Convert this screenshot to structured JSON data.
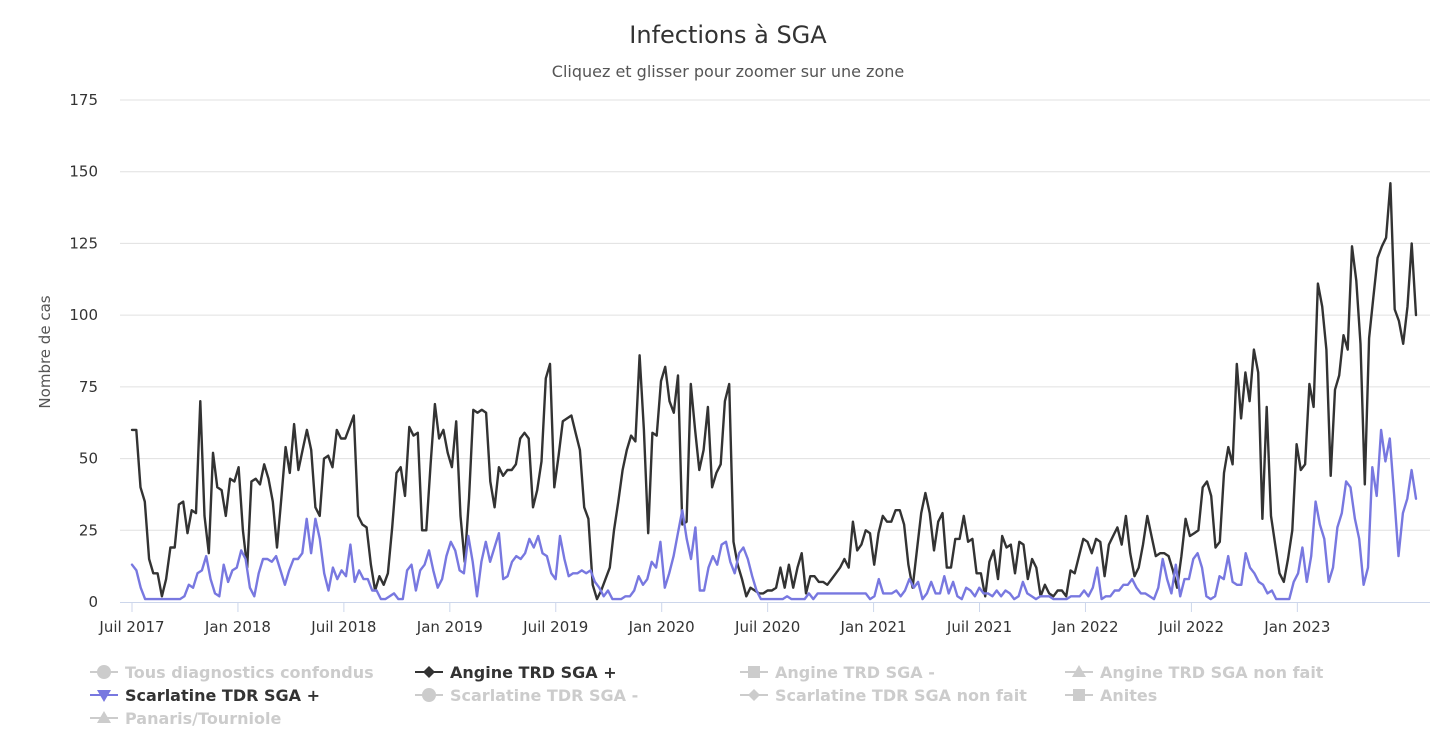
{
  "chart_data": {
    "type": "line",
    "title": "Infections à SGA",
    "subtitle": "Cliquez et glisser pour zoomer sur une zone",
    "ylabel": "Nombre de cas",
    "xlabel": "",
    "ylim": [
      0,
      175
    ],
    "yticks": [
      0,
      25,
      50,
      75,
      100,
      125,
      150,
      175
    ],
    "x_start": 2017.5,
    "x_end": 2023.56,
    "xticks": [
      {
        "label": "Juil 2017",
        "x": 2017.5
      },
      {
        "label": "Jan 2018",
        "x": 2018.0
      },
      {
        "label": "Juil 2018",
        "x": 2018.5
      },
      {
        "label": "Jan 2019",
        "x": 2019.0
      },
      {
        "label": "Juil 2019",
        "x": 2019.5
      },
      {
        "label": "Jan 2020",
        "x": 2020.0
      },
      {
        "label": "Juil 2020",
        "x": 2020.5
      },
      {
        "label": "Jan 2021",
        "x": 2021.0
      },
      {
        "label": "Juil 2021",
        "x": 2021.5
      },
      {
        "label": "Jan 2022",
        "x": 2022.0
      },
      {
        "label": "Juil 2022",
        "x": 2022.5
      },
      {
        "label": "Jan 2023",
        "x": 2023.0
      }
    ],
    "series": [
      {
        "name": "Angine TRD SGA +",
        "color": "#333333",
        "visible": true,
        "values": [
          60,
          60,
          40,
          35,
          15,
          10,
          10,
          2,
          8,
          19,
          19,
          34,
          35,
          24,
          32,
          31,
          70,
          30,
          17,
          52,
          40,
          39,
          30,
          43,
          42,
          47,
          25,
          12,
          42,
          43,
          41,
          48,
          43,
          35,
          19,
          36,
          54,
          45,
          62,
          46,
          53,
          60,
          53,
          33,
          30,
          50,
          51,
          47,
          60,
          57,
          57,
          61,
          65,
          30,
          27,
          26,
          13,
          4,
          9,
          6,
          10,
          26,
          45,
          47,
          37,
          61,
          58,
          59,
          25,
          25,
          48,
          69,
          57,
          60,
          52,
          47,
          63,
          30,
          14,
          36,
          67,
          66,
          67,
          66,
          42,
          33,
          47,
          44,
          46,
          46,
          48,
          57,
          59,
          57,
          33,
          39,
          49,
          78,
          83,
          40,
          51,
          63,
          64,
          65,
          59,
          53,
          33,
          29,
          6,
          1,
          4,
          8,
          12,
          25,
          35,
          46,
          53,
          58,
          56,
          86,
          60,
          24,
          59,
          58,
          77,
          82,
          70,
          66,
          79,
          27,
          28,
          76,
          60,
          46,
          53,
          68,
          40,
          45,
          48,
          70,
          76,
          21,
          13,
          8,
          2,
          5,
          4,
          3,
          3,
          4,
          4,
          5,
          12,
          5,
          13,
          5,
          12,
          17,
          3,
          9,
          9,
          7,
          7,
          6,
          8,
          10,
          12,
          15,
          12,
          28,
          18,
          20,
          25,
          24,
          13,
          24,
          30,
          28,
          28,
          32,
          32,
          27,
          13,
          5,
          18,
          31,
          38,
          31,
          18,
          28,
          31,
          12,
          12,
          22,
          22,
          30,
          21,
          22,
          10,
          10,
          2,
          14,
          18,
          8,
          23,
          19,
          20,
          10,
          21,
          20,
          8,
          15,
          12,
          2,
          6,
          3,
          2,
          4,
          4,
          2,
          11,
          10,
          16,
          22,
          21,
          17,
          22,
          21,
          9,
          20,
          23,
          26,
          20,
          30,
          17,
          9,
          12,
          20,
          30,
          23,
          16,
          17,
          17,
          16,
          11,
          5,
          16,
          29,
          23,
          24,
          25,
          40,
          42,
          37,
          19,
          21,
          45,
          54,
          48,
          83,
          64,
          80,
          70,
          88,
          80,
          29,
          68,
          30,
          20,
          10,
          7,
          15,
          25,
          55,
          46,
          48,
          76,
          68,
          111,
          103,
          88,
          44,
          74,
          79,
          93,
          88,
          124,
          112,
          90,
          41,
          92,
          106,
          120,
          124,
          127,
          146,
          102,
          98,
          90,
          103,
          125,
          100
        ]
      },
      {
        "name": "Scarlatine TDR SGA +",
        "color": "#7878e0",
        "visible": true,
        "values": [
          13,
          11,
          5,
          1,
          1,
          1,
          1,
          1,
          1,
          1,
          1,
          1,
          2,
          6,
          5,
          10,
          11,
          16,
          8,
          3,
          2,
          13,
          7,
          11,
          12,
          18,
          15,
          5,
          2,
          10,
          15,
          15,
          14,
          16,
          11,
          6,
          11,
          15,
          15,
          17,
          29,
          17,
          29,
          22,
          10,
          4,
          12,
          8,
          11,
          9,
          20,
          7,
          11,
          8,
          8,
          4,
          4,
          1,
          1,
          2,
          3,
          1,
          1,
          11,
          13,
          4,
          11,
          13,
          18,
          11,
          5,
          8,
          16,
          21,
          18,
          11,
          10,
          23,
          14,
          2,
          14,
          21,
          14,
          19,
          24,
          8,
          9,
          14,
          16,
          15,
          17,
          22,
          19,
          23,
          17,
          16,
          10,
          8,
          23,
          15,
          9,
          10,
          10,
          11,
          10,
          11,
          7,
          5,
          2,
          4,
          1,
          1,
          1,
          2,
          2,
          4,
          9,
          6,
          8,
          14,
          12,
          21,
          5,
          10,
          16,
          24,
          32,
          22,
          15,
          26,
          4,
          4,
          12,
          16,
          13,
          20,
          21,
          14,
          10,
          17,
          19,
          15,
          9,
          4,
          1,
          1,
          1,
          1,
          1,
          1,
          2,
          1,
          1,
          1,
          1,
          3,
          1,
          3,
          3,
          3,
          3,
          3,
          3,
          3,
          3,
          3,
          3,
          3,
          3,
          1,
          2,
          8,
          3,
          3,
          3,
          4,
          2,
          4,
          8,
          5,
          7,
          1,
          3,
          7,
          3,
          3,
          9,
          3,
          7,
          2,
          1,
          5,
          4,
          2,
          5,
          3,
          3,
          2,
          4,
          2,
          4,
          3,
          1,
          2,
          7,
          3,
          2,
          1,
          2,
          2,
          2,
          1,
          1,
          1,
          1,
          2,
          2,
          2,
          4,
          2,
          5,
          12,
          1,
          2,
          2,
          4,
          4,
          6,
          6,
          8,
          5,
          3,
          3,
          2,
          1,
          5,
          15,
          8,
          3,
          13,
          2,
          8,
          8,
          15,
          17,
          12,
          2,
          1,
          2,
          9,
          8,
          16,
          7,
          6,
          6,
          17,
          12,
          10,
          7,
          6,
          3,
          4,
          1,
          1,
          1,
          1,
          7,
          10,
          19,
          7,
          16,
          35,
          27,
          22,
          7,
          12,
          26,
          31,
          42,
          40,
          29,
          22,
          6,
          12,
          47,
          37,
          60,
          49,
          57,
          37,
          16,
          31,
          36,
          46,
          36
        ]
      },
      {
        "name": "Tous diagnostics confondus",
        "color": "#cccccc",
        "visible": false
      },
      {
        "name": "Angine TRD SGA -",
        "color": "#cccccc",
        "visible": false
      },
      {
        "name": "Angine TRD SGA non fait",
        "color": "#cccccc",
        "visible": false
      },
      {
        "name": "Scarlatine TDR SGA -",
        "color": "#cccccc",
        "visible": false
      },
      {
        "name": "Scarlatine TDR SGA non fait",
        "color": "#cccccc",
        "visible": false
      },
      {
        "name": "Anites",
        "color": "#cccccc",
        "visible": false
      },
      {
        "name": "Panaris/Tourniole",
        "color": "#cccccc",
        "visible": false
      }
    ]
  },
  "legend": {
    "items": [
      {
        "label": "Tous diagnostics confondus",
        "marker": "circle",
        "active": false
      },
      {
        "label": "Angine TRD SGA +",
        "marker": "diamond",
        "active": true
      },
      {
        "label": "Angine TRD SGA -",
        "marker": "square",
        "active": false
      },
      {
        "label": "Angine TRD SGA non fait",
        "marker": "triangle",
        "active": false
      },
      {
        "label": "Scarlatine TDR SGA +",
        "marker": "triangle-down",
        "active": true
      },
      {
        "label": "Scarlatine TDR SGA -",
        "marker": "circle",
        "active": false
      },
      {
        "label": "Scarlatine TDR SGA non fait",
        "marker": "diamond",
        "active": false
      },
      {
        "label": "Anites",
        "marker": "square",
        "active": false
      },
      {
        "label": "Panaris/Tourniole",
        "marker": "triangle",
        "active": false
      }
    ]
  },
  "colors": {
    "active_marker_0": "#333333",
    "active_marker_1": "#7878e0",
    "inactive": "#cccccc",
    "active_text": "#333333"
  }
}
